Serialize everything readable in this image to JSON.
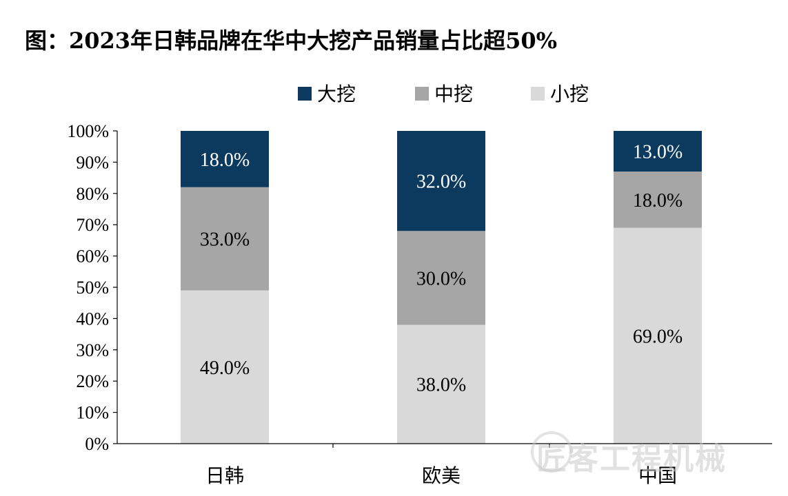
{
  "title": "图：2023年日韩品牌在华中大挖产品销量占比超50%",
  "watermark": {
    "text": "匠客工程机械",
    "logo_icon": "gear-logo-icon"
  },
  "chart_data": {
    "type": "bar",
    "stacked": true,
    "categories": [
      "日韩",
      "欧美",
      "中国"
    ],
    "series": [
      {
        "name": "小挖",
        "color": "#d9d9d9",
        "label_color": "#000000",
        "values": [
          49.0,
          38.0,
          69.0
        ]
      },
      {
        "name": "中挖",
        "color": "#a6a6a6",
        "label_color": "#000000",
        "values": [
          33.0,
          30.0,
          18.0
        ]
      },
      {
        "name": "大挖",
        "color": "#0b3a5e",
        "label_color": "#ffffff",
        "values": [
          18.0,
          32.0,
          13.0
        ]
      }
    ],
    "legend_order": [
      "大挖",
      "中挖",
      "小挖"
    ],
    "legend_position": "top",
    "value_format": "0.0%",
    "yticks": [
      "0%",
      "10%",
      "20%",
      "30%",
      "40%",
      "50%",
      "60%",
      "70%",
      "80%",
      "90%",
      "100%"
    ],
    "ylim": [
      0,
      100
    ],
    "grid": false
  }
}
